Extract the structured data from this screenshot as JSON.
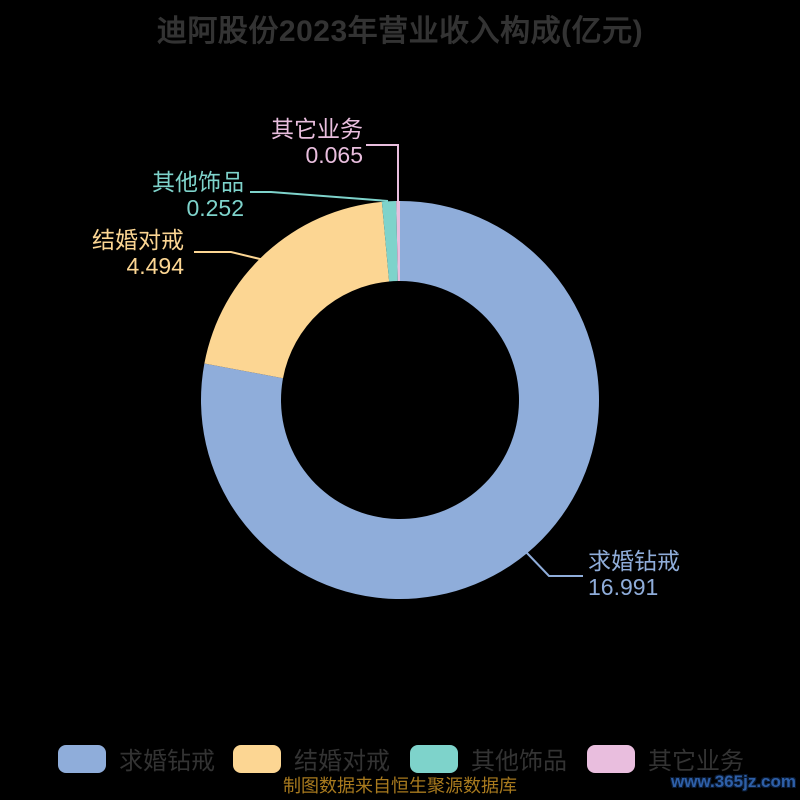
{
  "title": "迪阿股份2023年营业收入构成(亿元)",
  "chart_data": {
    "type": "pie",
    "subtype": "donut",
    "title": "迪阿股份2023年营业收入构成(亿元)",
    "unit": "亿元",
    "series": [
      {
        "name": "求婚钻戒",
        "value": 16.991,
        "color": "#8fadda"
      },
      {
        "name": "结婚对戒",
        "value": 4.494,
        "color": "#fcd693"
      },
      {
        "name": "其他饰品",
        "value": 0.252,
        "color": "#7ed3cb"
      },
      {
        "name": "其它业务",
        "value": 0.065,
        "color": "#e9bede"
      }
    ],
    "start_angle": "top",
    "direction": "clockwise",
    "inner_radius_ratio": 0.6,
    "labels_shown": true,
    "legend_position": "bottom",
    "background": "#000000"
  },
  "legend": {
    "items": [
      {
        "label": "求婚钻戒"
      },
      {
        "label": "结婚对戒"
      },
      {
        "label": "其他饰品"
      },
      {
        "label": "其它业务"
      }
    ]
  },
  "footer": {
    "credit": "制图数据来自恒生聚源数据库",
    "watermark": "www.365jz.com"
  },
  "colors": {
    "background": "#000000",
    "title_text": "#333333",
    "legend_text": "#333333",
    "credit_text": "#a87a1e",
    "watermark_text": "#2e5fa7"
  }
}
